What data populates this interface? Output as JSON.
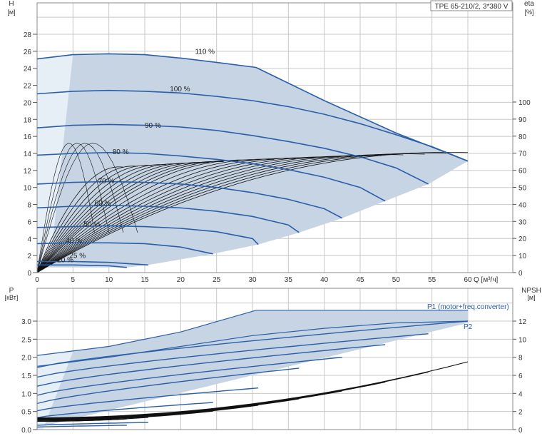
{
  "title_box": "TPE 65-210/2, 3*380 V",
  "colors": {
    "area_fill": "#c6d4e4",
    "area_fill_light": "#e6eef6",
    "curve": "#2b5fa8",
    "eff": "#111111",
    "grid": "#c8c8c8"
  },
  "chart_data": [
    {
      "type": "line",
      "name": "Head / efficiency",
      "y_axis_title": "H",
      "y_axis_unit": "[м]",
      "y2_axis_title": "eta",
      "y2_axis_unit": "[%]",
      "x_axis_title": "Q [м³/ч]",
      "xlim": [
        0,
        62
      ],
      "ylim": [
        0,
        30
      ],
      "y2lim": [
        0,
        120
      ],
      "x_ticks": [
        "0",
        "5",
        "10",
        "15",
        "20",
        "25",
        "30",
        "35",
        "40",
        "45",
        "50",
        "55",
        "60"
      ],
      "y_ticks": [
        "0",
        "2",
        "4",
        "6",
        "8",
        "10",
        "12",
        "14",
        "16",
        "18",
        "20",
        "22",
        "24",
        "26",
        "28"
      ],
      "y2_ticks": [
        "0",
        "10",
        "20",
        "30",
        "40",
        "50",
        "60",
        "70",
        "80",
        "90",
        "100"
      ],
      "grid": true,
      "series": [
        {
          "name": "110 %",
          "x": [
            0,
            5,
            10,
            15,
            20,
            25,
            30.5,
            40,
            50,
            60
          ],
          "y": [
            25.1,
            25.6,
            25.7,
            25.6,
            25.2,
            24.7,
            24.1,
            20.2,
            16.4,
            13.1
          ]
        },
        {
          "name": "100 %",
          "x": [
            0,
            5,
            10,
            15,
            20,
            25,
            30,
            35,
            40,
            45,
            50,
            55,
            60
          ],
          "y": [
            21.0,
            21.3,
            21.4,
            21.3,
            21.1,
            20.7,
            20.2,
            19.5,
            18.6,
            17.5,
            16.2,
            14.8,
            13.1
          ]
        },
        {
          "name": "90 %",
          "x": [
            0,
            5,
            10,
            15,
            20,
            25,
            30,
            35,
            40,
            45,
            50,
            54.5
          ],
          "y": [
            17.0,
            17.3,
            17.4,
            17.3,
            17.1,
            16.7,
            16.1,
            15.4,
            14.6,
            13.6,
            12.3,
            10.4
          ]
        },
        {
          "name": "80 %",
          "x": [
            0,
            5,
            10,
            15,
            20,
            25,
            30,
            35,
            40,
            45,
            48.5
          ],
          "y": [
            13.8,
            14.0,
            14.1,
            14.0,
            13.7,
            13.3,
            12.8,
            12.1,
            11.2,
            10.0,
            8.4
          ]
        },
        {
          "name": "70 %",
          "x": [
            0,
            5,
            10,
            15,
            20,
            25,
            30,
            35,
            40,
            42.5
          ],
          "y": [
            10.4,
            10.6,
            10.7,
            10.6,
            10.4,
            10.0,
            9.4,
            8.6,
            7.5,
            6.4
          ]
        },
        {
          "name": "60 %",
          "x": [
            0,
            5,
            10,
            15,
            20,
            25,
            30,
            35,
            36.5
          ],
          "y": [
            7.6,
            7.8,
            7.9,
            7.8,
            7.6,
            7.2,
            6.6,
            5.6,
            4.7
          ]
        },
        {
          "name": "50 %",
          "x": [
            0,
            5,
            10,
            15,
            20,
            25,
            30,
            30.8
          ],
          "y": [
            5.3,
            5.4,
            5.5,
            5.4,
            5.2,
            4.8,
            4.0,
            3.3
          ]
        },
        {
          "name": "40 %",
          "x": [
            0,
            5,
            10,
            15,
            20,
            24.5
          ],
          "y": [
            3.4,
            3.5,
            3.5,
            3.4,
            3.0,
            2.2
          ]
        },
        {
          "name": "25 %",
          "x": [
            0,
            5,
            10,
            15.5
          ],
          "y": [
            1.3,
            1.3,
            1.2,
            0.9
          ]
        },
        {
          "name": "20 %",
          "x": [
            0,
            5,
            10,
            12.5
          ],
          "y": [
            0.9,
            0.9,
            0.8,
            0.6
          ]
        }
      ]
    },
    {
      "type": "line",
      "name": "Power / NPSH",
      "y_axis_title": "P",
      "y_axis_unit": "[кВт]",
      "y2_axis_title": "NPSH",
      "y2_axis_unit": "[м]",
      "xlim": [
        0,
        62
      ],
      "ylim": [
        0,
        3.5
      ],
      "y2lim": [
        0,
        14
      ],
      "y_ticks": [
        "0.0",
        "0.5",
        "1.0",
        "1.5",
        "2.0",
        "2.5",
        "3.0"
      ],
      "y2_ticks": [
        "0",
        "2",
        "4",
        "6",
        "8",
        "10",
        "12"
      ],
      "grid": true,
      "annotations": [
        "P1 (motor+freq.converter)",
        "P2"
      ],
      "series": [
        {
          "name": "P1 (motor+freq.converter)",
          "x": [
            0,
            10,
            20,
            30.5,
            40,
            50,
            60
          ],
          "y": [
            2.05,
            2.3,
            2.7,
            3.3,
            3.3,
            3.3,
            3.3
          ]
        },
        {
          "name": "P2",
          "x": [
            0,
            10,
            20,
            30,
            40,
            50,
            60
          ],
          "y": [
            1.75,
            2.0,
            2.3,
            2.6,
            2.8,
            2.95,
            3.0
          ]
        }
      ]
    }
  ]
}
